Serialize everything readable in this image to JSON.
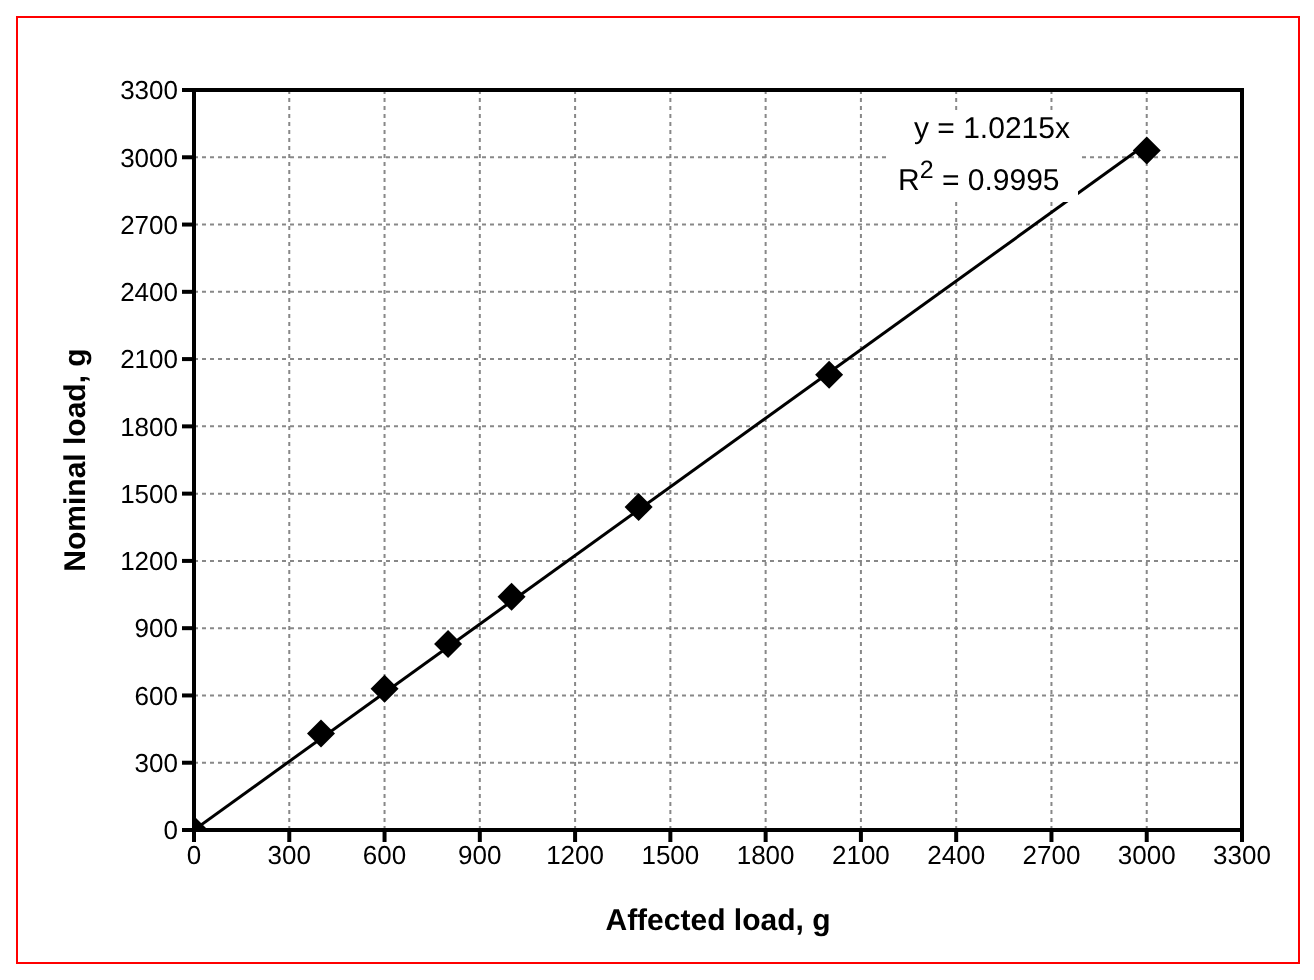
{
  "chart_data": {
    "type": "scatter",
    "xlabel": "Affected load, g",
    "ylabel": "Nominal load, g",
    "x": [
      0,
      400,
      600,
      800,
      1000,
      1400,
      2000,
      3000
    ],
    "series": [
      {
        "color": "#000000",
        "marker": "diamond",
        "values": [
          0,
          430,
          630,
          830,
          1040,
          1440,
          2030,
          3030
        ]
      },
      {
        "type": "line",
        "color": "#000000",
        "marker": "none",
        "line_style": "solid",
        "x": [
          0,
          3000
        ],
        "values": [
          0,
          3060
        ]
      }
    ],
    "xlim": [
      0,
      3300
    ],
    "xticks": [
      0,
      300,
      600,
      900,
      1200,
      1500,
      1800,
      2100,
      2400,
      2700,
      3000,
      3300
    ],
    "ylim": [
      0,
      3300
    ],
    "yticks": [
      0,
      300,
      600,
      900,
      1200,
      1500,
      1800,
      2100,
      2400,
      2700,
      3000,
      3300
    ],
    "grid": true,
    "legend": false,
    "annotations": [
      "y = 1.0215x",
      "R$^{2}$ = 0.9995"
    ]
  }
}
